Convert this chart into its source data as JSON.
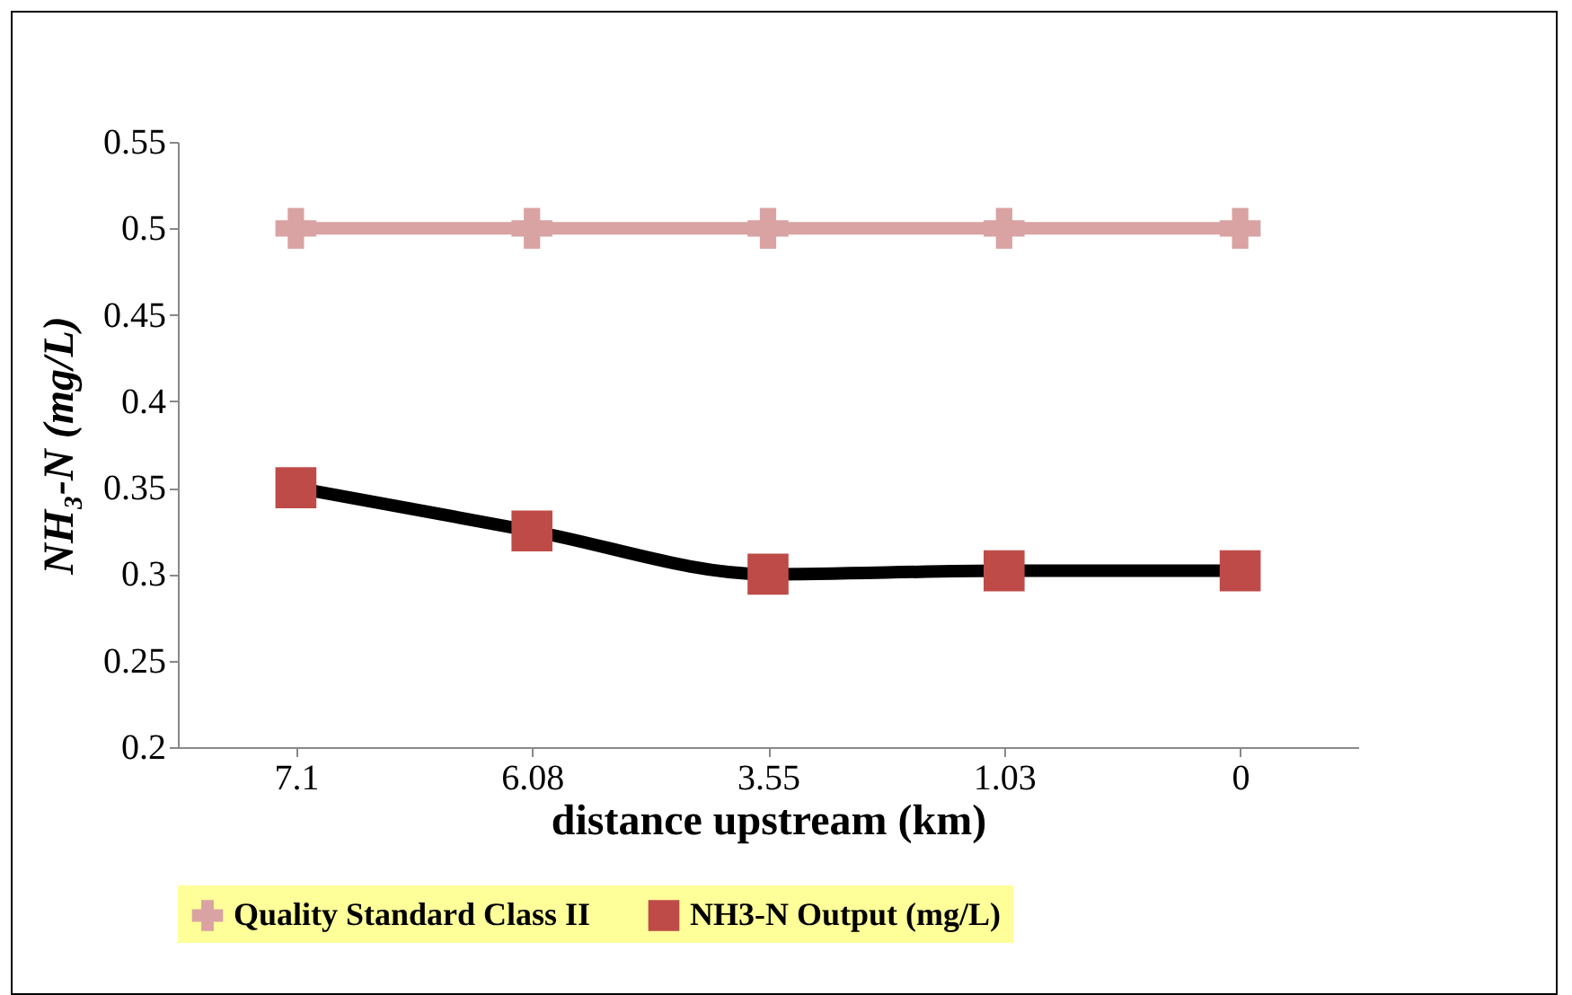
{
  "chart_data": {
    "type": "line",
    "xlabel": "distance  upstream (km)",
    "ylabel": "NH₃-N (mg/L)",
    "categories": [
      "7.1",
      "6.08",
      "3.55",
      "1.03",
      "0"
    ],
    "series": [
      {
        "name": "Quality Standard Class II",
        "color": "#d9a3a3",
        "marker": "cross",
        "values": [
          0.5,
          0.5,
          0.5,
          0.5,
          0.5
        ]
      },
      {
        "name": "NH3-N Output (mg/L)",
        "color": "#be4b48",
        "marker": "square",
        "values": [
          0.35,
          0.325,
          0.3,
          0.302,
          0.302
        ]
      }
    ],
    "ylim": [
      0.2,
      0.55
    ],
    "yticks": [
      0.2,
      0.25,
      0.3,
      0.35,
      0.4,
      0.45,
      0.5,
      0.55
    ],
    "grid": false,
    "legend": "bottom"
  }
}
